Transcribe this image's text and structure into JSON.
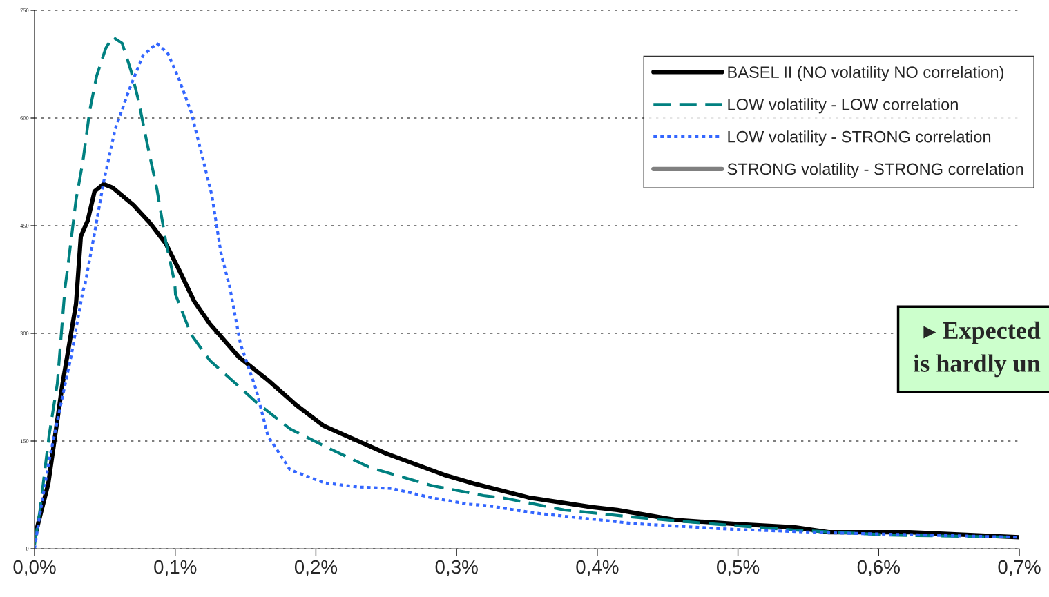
{
  "chart_data": {
    "type": "line",
    "xlim": [
      0,
      0.7
    ],
    "ylim": [
      0,
      750
    ],
    "xticks": [
      {
        "value": 0,
        "label": "0,0%"
      },
      {
        "value": 0.1,
        "label": "0,1%"
      },
      {
        "value": 0.2,
        "label": "0,2%"
      },
      {
        "value": 0.3,
        "label": "0,3%"
      },
      {
        "value": 0.4,
        "label": "0,4%"
      },
      {
        "value": 0.5,
        "label": "0,5%"
      },
      {
        "value": 0.6,
        "label": "0,6%"
      },
      {
        "value": 0.7,
        "label": "0,7%"
      }
    ],
    "yticks": [
      0,
      150,
      300,
      450,
      600,
      750
    ],
    "grid": "y",
    "legend": "top right",
    "series": [
      {
        "name": "BASEL II (NO volatility NO correlation)",
        "color": "#000000",
        "line_style": "solid",
        "x": [
          0,
          0.0098,
          0.0196,
          0.0295,
          0.0329,
          0.0378,
          0.0427,
          0.0491,
          0.0555,
          0.0702,
          0.082,
          0.0933,
          0.1031,
          0.1134,
          0.1247,
          0.1453,
          0.1664,
          0.1861,
          0.2057,
          0.2494,
          0.2911,
          0.3137,
          0.352,
          0.3957,
          0.4143,
          0.4556,
          0.5017,
          0.54,
          0.5645,
          0.622,
          0.7
        ],
        "values": [
          15,
          91,
          226,
          341,
          435,
          457,
          498,
          508,
          503,
          479,
          454,
          425,
          387,
          345,
          313,
          267,
          234,
          200,
          171,
          133,
          103,
          90,
          71,
          58,
          54,
          40,
          34,
          30,
          23,
          23,
          16
        ]
      },
      {
        "name": "LOW volatility - LOW correlation",
        "color": "#008080",
        "line_style": "dashed",
        "x": [
          0,
          0.0039,
          0.0103,
          0.0162,
          0.0216,
          0.0245,
          0.0295,
          0.0344,
          0.0393,
          0.0442,
          0.0506,
          0.0555,
          0.0623,
          0.0687,
          0.0736,
          0.08,
          0.0869,
          0.0933,
          0.0997,
          0.1002,
          0.1114,
          0.1247,
          0.1419,
          0.1576,
          0.1816,
          0.2101,
          0.2386,
          0.2823,
          0.3191,
          0.3353,
          0.3765,
          0.431,
          0.4855,
          0.54,
          0.6082,
          0.7
        ],
        "values": [
          5,
          54,
          157,
          230,
          362,
          406,
          486,
          540,
          611,
          659,
          697,
          713,
          704,
          665,
          627,
          565,
          502,
          428,
          370,
          354,
          298,
          262,
          232,
          204,
          167,
          139,
          113,
          88,
          74,
          70,
          54,
          43,
          34,
          26,
          19,
          16
        ]
      },
      {
        "name": "LOW volatility - STRONG correlation",
        "color": "#3366ff",
        "line_style": "dotted",
        "x": [
          0,
          0.0039,
          0.0103,
          0.0162,
          0.026,
          0.0344,
          0.0358,
          0.0427,
          0.0491,
          0.0574,
          0.0672,
          0.077,
          0.0869,
          0.0948,
          0.1031,
          0.1114,
          0.1193,
          0.1261,
          0.1325,
          0.1389,
          0.1463,
          0.1576,
          0.1659,
          0.1816,
          0.2057,
          0.2298,
          0.2538,
          0.2823,
          0.3088,
          0.322,
          0.3544,
          0.4256,
          0.4963,
          0.5675,
          0.7
        ],
        "values": [
          0,
          49,
          122,
          178,
          268,
          359,
          367,
          440,
          511,
          585,
          639,
          687,
          704,
          690,
          652,
          608,
          546,
          492,
          412,
          363,
          286,
          221,
          157,
          110,
          92,
          86,
          84,
          71,
          62,
          60,
          50,
          35,
          27,
          22,
          16
        ]
      },
      {
        "name": "STRONG volatility - STRONG correlation",
        "color": "#808080",
        "line_style": "solid",
        "values": [
          null,
          null
        ]
      }
    ],
    "annotations": [
      "▸ Expected",
      "is hardly un"
    ]
  }
}
